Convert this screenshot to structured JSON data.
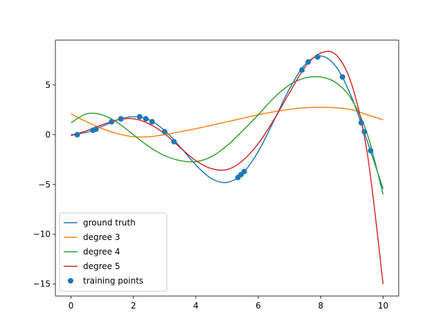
{
  "chart_data": {
    "type": "line",
    "title": "",
    "xlabel": "",
    "ylabel": "",
    "xlim": [
      -0.5,
      10.5
    ],
    "ylim": [
      -16.2,
      9.5
    ],
    "xticks": [
      0,
      2,
      4,
      6,
      8,
      10
    ],
    "yticks": [
      -15,
      -10,
      -5,
      0,
      5
    ],
    "x_tick_labels": [
      "0",
      "2",
      "4",
      "6",
      "8",
      "10"
    ],
    "y_tick_labels": [
      "−15",
      "−10",
      "−5",
      "0",
      "5"
    ],
    "grid": false,
    "legend_position": "lower-left",
    "series": [
      {
        "name": "ground truth",
        "color": "#1f77b4",
        "x": [
          0,
          0.5,
          1,
          1.5,
          2,
          2.5,
          3,
          3.5,
          4,
          4.5,
          5,
          5.5,
          6,
          6.5,
          7,
          7.5,
          8,
          8.5,
          9,
          9.5,
          10
        ],
        "y": [
          0,
          0.24,
          0.84,
          1.5,
          1.82,
          1.5,
          0.42,
          -1.23,
          -3.03,
          -4.4,
          -4.79,
          -3.88,
          -1.68,
          1.4,
          4.6,
          7.04,
          7.91,
          6.8,
          3.71,
          -0.72,
          -5.44
        ]
      },
      {
        "name": "degree 3",
        "color": "#ff7f0e",
        "x": [
          0,
          0.5,
          1,
          1.5,
          2,
          2.5,
          3,
          3.5,
          4,
          4.5,
          5,
          5.5,
          6,
          6.5,
          7,
          7.5,
          8,
          8.5,
          9,
          9.5,
          10
        ],
        "y": [
          2.1,
          1.3,
          0.6,
          0.1,
          -0.2,
          -0.2,
          0.0,
          0.3,
          0.6,
          0.95,
          1.3,
          1.65,
          2.0,
          2.3,
          2.55,
          2.7,
          2.75,
          2.7,
          2.5,
          2.0,
          1.5
        ]
      },
      {
        "name": "degree 4",
        "color": "#2ca02c",
        "x": [
          0,
          0.5,
          1,
          1.5,
          2,
          2.5,
          3,
          3.5,
          4,
          4.5,
          5,
          5.5,
          6,
          6.5,
          7,
          7.5,
          8,
          8.5,
          9,
          9.5,
          10
        ],
        "y": [
          1.2,
          2.1,
          2.0,
          1.2,
          0.0,
          -1.2,
          -2.1,
          -2.6,
          -2.7,
          -2.2,
          -1.1,
          0.4,
          2.0,
          3.7,
          5.0,
          5.7,
          5.8,
          5.2,
          3.5,
          0.0,
          -6.0
        ]
      },
      {
        "name": "degree 5",
        "color": "#d62728",
        "x": [
          0,
          0.5,
          1,
          1.5,
          2,
          2.5,
          3,
          3.5,
          4,
          4.5,
          5,
          5.5,
          6,
          6.5,
          7,
          7.5,
          8,
          8.5,
          9,
          9.5,
          10
        ],
        "y": [
          -0.1,
          0.4,
          1.0,
          1.5,
          1.6,
          1.1,
          0.1,
          -1.3,
          -2.6,
          -3.4,
          -3.5,
          -2.6,
          -0.9,
          1.5,
          4.2,
          6.8,
          8.2,
          8.0,
          5.0,
          -2.0,
          -15.0
        ]
      }
    ],
    "training_points": {
      "name": "training points",
      "color": "#1f77b4",
      "x": [
        0.2,
        0.7,
        0.8,
        1.3,
        1.6,
        2.2,
        2.4,
        2.6,
        3.0,
        3.3,
        5.35,
        5.45,
        5.55,
        7.4,
        7.6,
        7.9,
        8.7,
        9.3,
        9.4,
        9.6
      ],
      "y": [
        0.0,
        0.45,
        0.55,
        1.3,
        1.6,
        1.8,
        1.6,
        1.3,
        0.3,
        -0.7,
        -4.3,
        -4.0,
        -3.7,
        6.5,
        7.3,
        7.8,
        5.8,
        1.2,
        0.3,
        -1.6
      ]
    }
  }
}
